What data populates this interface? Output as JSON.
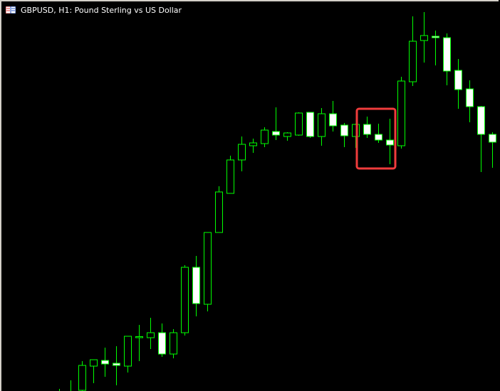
{
  "window": {
    "title": "GBPUSD, H1:  Pound Sterling vs US Dollar",
    "icon": "currency-pair-flag-icon"
  },
  "chart_data": {
    "type": "candlestick",
    "title": "GBPUSD, H1:  Pound Sterling vs US Dollar",
    "symbol": "GBPUSD",
    "timeframe": "H1",
    "grid": false,
    "colors": {
      "background": "#000000",
      "outline": "#00ff00",
      "bull_fill": "#000000",
      "bear_fill": "#ffffff",
      "highlight": "#f03c3c"
    },
    "value_range": [
      0,
      550
    ],
    "candles_ohlc": [
      [
        -30,
        3,
        -40,
        -10
      ],
      [
        -20,
        15,
        -30,
        -5
      ],
      [
        -10,
        42,
        -20,
        36
      ],
      [
        35,
        44,
        11,
        44
      ],
      [
        43,
        61,
        20,
        38
      ],
      [
        39,
        63,
        8,
        36
      ],
      [
        35,
        77,
        26,
        77
      ],
      [
        76,
        93,
        42,
        76.5
      ],
      [
        75,
        103,
        59,
        82
      ],
      [
        82,
        95,
        48,
        52
      ],
      [
        52,
        87,
        46,
        82
      ],
      [
        82,
        177,
        78,
        174
      ],
      [
        174,
        190,
        105,
        123
      ],
      [
        122,
        223,
        112,
        223
      ],
      [
        223,
        288,
        223,
        280
      ],
      [
        278,
        331,
        278,
        325
      ],
      [
        325,
        358,
        309,
        347
      ],
      [
        345,
        355,
        335,
        349
      ],
      [
        348,
        371,
        343,
        367
      ],
      [
        365,
        399,
        353,
        360
      ],
      [
        358,
        364,
        352,
        363
      ],
      [
        360,
        392,
        359,
        391
      ],
      [
        392,
        392,
        356,
        358
      ],
      [
        358,
        398,
        345,
        390
      ],
      [
        390,
        408,
        365,
        373
      ],
      [
        374,
        377,
        343,
        359
      ],
      [
        358,
        376,
        342,
        375
      ],
      [
        375,
        386,
        356,
        361
      ],
      [
        361,
        376,
        349,
        353
      ],
      [
        353,
        383,
        319,
        346
      ],
      [
        345,
        442,
        341,
        436
      ],
      [
        435,
        527,
        429,
        492
      ],
      [
        493,
        533,
        462,
        500
      ],
      [
        499,
        507,
        458,
        497
      ],
      [
        497,
        503,
        430,
        450
      ],
      [
        451,
        467,
        397,
        424
      ],
      [
        425,
        437,
        378,
        400
      ],
      [
        400,
        401,
        308,
        361
      ],
      [
        361,
        364,
        314,
        350
      ]
    ],
    "highlight": {
      "from_index": 27,
      "to_index": 29,
      "shape": "rounded-rectangle"
    }
  }
}
